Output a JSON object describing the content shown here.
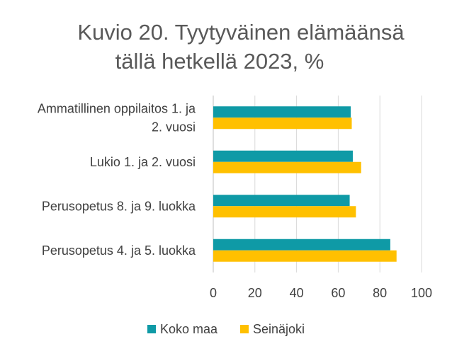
{
  "chart_data": {
    "type": "bar",
    "orientation": "horizontal",
    "title": [
      "Kuvio 20. Tyytyväinen elämäänsä",
      "tällä hetkellä 2023, %"
    ],
    "categories": [
      [
        "Ammatillinen oppilaitos 1. ja",
        "2. vuosi"
      ],
      [
        "Lukio 1. ja 2. vuosi"
      ],
      [
        "Perusopetus 8. ja 9. luokka"
      ],
      [
        "Perusopetus 4. ja 5. luokka"
      ]
    ],
    "series": [
      {
        "name": "Koko maa",
        "color": "#0f9aa6",
        "values": [
          66,
          67,
          65.5,
          85
        ]
      },
      {
        "name": "Seinäjoki",
        "color": "#ffc000",
        "values": [
          66.5,
          71,
          68.5,
          88
        ]
      }
    ],
    "xlim": [
      0,
      100
    ],
    "xticks": [
      "0",
      "20",
      "40",
      "60",
      "80",
      "100"
    ],
    "grid": true,
    "legend_position": "bottom"
  }
}
